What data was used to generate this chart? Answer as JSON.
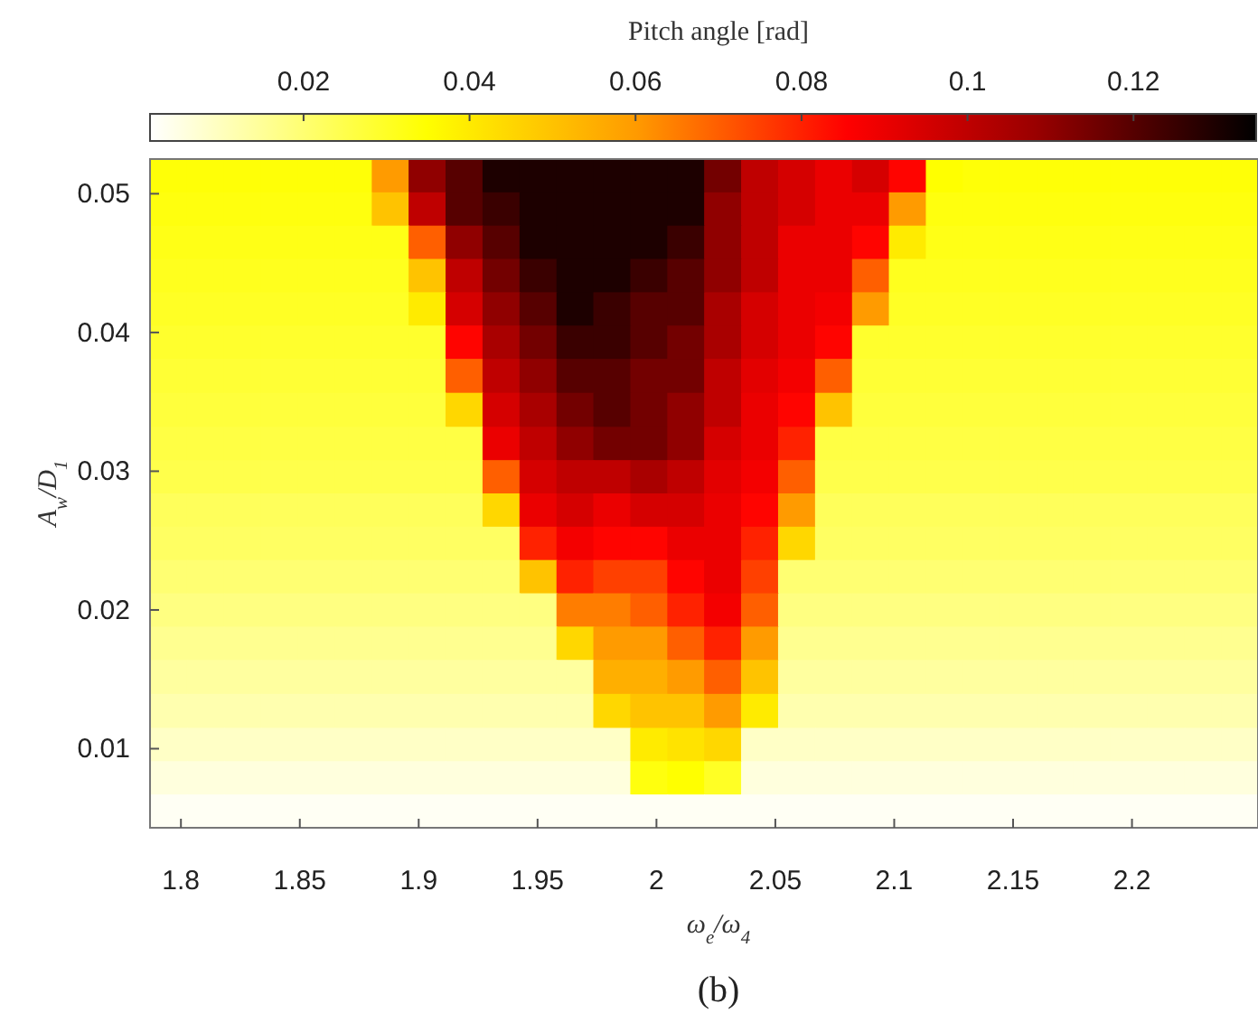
{
  "chart_data": {
    "type": "heatmap",
    "xlabel": "ω$_{e}$/ω$_{4}$",
    "ylabel": "A$_{w}$/D$_{1}$",
    "clabel": "Pitch angle [rad]",
    "annotations": [
      "(b)"
    ],
    "xlim": [
      1.787,
      2.253
    ],
    "xticks": [
      1.8,
      1.85,
      1.9,
      1.95,
      2,
      2.05,
      2.1,
      2.15,
      2.2
    ],
    "ylim": [
      0.0043,
      0.0525
    ],
    "yticks": [
      0.01,
      0.02,
      0.03,
      0.04,
      0.05
    ],
    "clim": [
      0.0015,
      0.135
    ],
    "cticks": [
      0.02,
      0.04,
      0.06,
      0.08,
      0.1,
      0.12
    ],
    "x": [
      1.7948,
      1.8103,
      1.8259,
      1.8414,
      1.8569,
      1.8725,
      1.888,
      1.9035,
      1.9191,
      1.9346,
      1.9502,
      1.9657,
      1.9812,
      1.9968,
      2.0123,
      2.0278,
      2.0434,
      2.0589,
      2.0745,
      2.09,
      2.1055,
      2.1211,
      2.1366,
      2.1521,
      2.1677,
      2.1832,
      2.1988,
      2.2143,
      2.2298,
      2.2454
    ],
    "y": [
      0.0513,
      0.0489,
      0.0465,
      0.0441,
      0.0417,
      0.0393,
      0.0369,
      0.0344,
      0.032,
      0.0296,
      0.0272,
      0.0248,
      0.0224,
      0.02,
      0.0176,
      0.0152,
      0.0127,
      0.0103,
      0.0079,
      0.0055
    ],
    "cells": [
      [
        0.034,
        0.034,
        0.034,
        0.034,
        0.034,
        0.034,
        0.06,
        0.11,
        0.12,
        0.13,
        0.13,
        0.13,
        0.13,
        0.13,
        0.13,
        0.115,
        0.1,
        0.095,
        0.09,
        0.095,
        0.085,
        0.035,
        0.034,
        0.034,
        0.034,
        0.034,
        0.034,
        0.034,
        0.034,
        0.034
      ],
      [
        0.033,
        0.033,
        0.033,
        0.033,
        0.033,
        0.033,
        0.05,
        0.1,
        0.12,
        0.125,
        0.13,
        0.13,
        0.13,
        0.13,
        0.13,
        0.11,
        0.1,
        0.095,
        0.09,
        0.09,
        0.06,
        0.033,
        0.033,
        0.033,
        0.033,
        0.033,
        0.033,
        0.033,
        0.033,
        0.033
      ],
      [
        0.032,
        0.032,
        0.032,
        0.032,
        0.032,
        0.032,
        0.032,
        0.07,
        0.11,
        0.12,
        0.13,
        0.13,
        0.13,
        0.13,
        0.125,
        0.11,
        0.1,
        0.09,
        0.09,
        0.085,
        0.04,
        0.032,
        0.032,
        0.032,
        0.032,
        0.032,
        0.032,
        0.032,
        0.032,
        0.032
      ],
      [
        0.031,
        0.031,
        0.031,
        0.031,
        0.031,
        0.031,
        0.031,
        0.05,
        0.1,
        0.115,
        0.125,
        0.13,
        0.13,
        0.125,
        0.12,
        0.11,
        0.1,
        0.09,
        0.09,
        0.07,
        0.031,
        0.031,
        0.031,
        0.031,
        0.031,
        0.031,
        0.031,
        0.031,
        0.031,
        0.031
      ],
      [
        0.03,
        0.03,
        0.03,
        0.03,
        0.03,
        0.03,
        0.03,
        0.04,
        0.095,
        0.11,
        0.12,
        0.13,
        0.125,
        0.12,
        0.12,
        0.105,
        0.095,
        0.09,
        0.088,
        0.06,
        0.03,
        0.03,
        0.03,
        0.03,
        0.03,
        0.03,
        0.03,
        0.03,
        0.03,
        0.03
      ],
      [
        0.029,
        0.029,
        0.029,
        0.029,
        0.029,
        0.029,
        0.029,
        0.029,
        0.085,
        0.105,
        0.115,
        0.125,
        0.125,
        0.12,
        0.115,
        0.105,
        0.095,
        0.09,
        0.085,
        0.029,
        0.029,
        0.029,
        0.029,
        0.029,
        0.029,
        0.029,
        0.029,
        0.029,
        0.029,
        0.029
      ],
      [
        0.028,
        0.028,
        0.028,
        0.028,
        0.028,
        0.028,
        0.028,
        0.028,
        0.07,
        0.1,
        0.11,
        0.12,
        0.12,
        0.115,
        0.115,
        0.1,
        0.092,
        0.088,
        0.07,
        0.028,
        0.028,
        0.028,
        0.028,
        0.028,
        0.028,
        0.028,
        0.028,
        0.028,
        0.028,
        0.028
      ],
      [
        0.027,
        0.027,
        0.027,
        0.027,
        0.027,
        0.027,
        0.027,
        0.027,
        0.045,
        0.095,
        0.105,
        0.115,
        0.12,
        0.115,
        0.11,
        0.1,
        0.09,
        0.085,
        0.05,
        0.027,
        0.027,
        0.027,
        0.027,
        0.027,
        0.027,
        0.027,
        0.027,
        0.027,
        0.027,
        0.027
      ],
      [
        0.026,
        0.026,
        0.026,
        0.026,
        0.026,
        0.026,
        0.026,
        0.026,
        0.026,
        0.09,
        0.1,
        0.11,
        0.115,
        0.115,
        0.11,
        0.095,
        0.09,
        0.08,
        0.026,
        0.026,
        0.026,
        0.026,
        0.026,
        0.026,
        0.026,
        0.026,
        0.026,
        0.026,
        0.026,
        0.026
      ],
      [
        0.025,
        0.025,
        0.025,
        0.025,
        0.025,
        0.025,
        0.025,
        0.025,
        0.025,
        0.07,
        0.095,
        0.1,
        0.1,
        0.105,
        0.1,
        0.092,
        0.088,
        0.07,
        0.025,
        0.025,
        0.025,
        0.025,
        0.025,
        0.025,
        0.025,
        0.025,
        0.025,
        0.025,
        0.025,
        0.025
      ],
      [
        0.023,
        0.023,
        0.023,
        0.023,
        0.023,
        0.023,
        0.023,
        0.023,
        0.023,
        0.045,
        0.09,
        0.095,
        0.09,
        0.095,
        0.095,
        0.09,
        0.085,
        0.06,
        0.023,
        0.023,
        0.023,
        0.023,
        0.023,
        0.023,
        0.023,
        0.023,
        0.023,
        0.023,
        0.023,
        0.023
      ],
      [
        0.022,
        0.022,
        0.022,
        0.022,
        0.022,
        0.022,
        0.022,
        0.022,
        0.022,
        0.022,
        0.08,
        0.088,
        0.085,
        0.085,
        0.09,
        0.09,
        0.08,
        0.045,
        0.022,
        0.022,
        0.022,
        0.022,
        0.022,
        0.022,
        0.022,
        0.022,
        0.022,
        0.022,
        0.022,
        0.022
      ],
      [
        0.02,
        0.02,
        0.02,
        0.02,
        0.02,
        0.02,
        0.02,
        0.02,
        0.02,
        0.02,
        0.05,
        0.08,
        0.075,
        0.075,
        0.085,
        0.09,
        0.075,
        0.02,
        0.02,
        0.02,
        0.02,
        0.02,
        0.02,
        0.02,
        0.02,
        0.02,
        0.02,
        0.02,
        0.02,
        0.02
      ],
      [
        0.018,
        0.018,
        0.018,
        0.018,
        0.018,
        0.018,
        0.018,
        0.018,
        0.018,
        0.018,
        0.018,
        0.065,
        0.065,
        0.07,
        0.08,
        0.088,
        0.07,
        0.018,
        0.018,
        0.018,
        0.018,
        0.018,
        0.018,
        0.018,
        0.018,
        0.018,
        0.018,
        0.018,
        0.018,
        0.018
      ],
      [
        0.016,
        0.016,
        0.016,
        0.016,
        0.016,
        0.016,
        0.016,
        0.016,
        0.016,
        0.016,
        0.016,
        0.045,
        0.06,
        0.06,
        0.07,
        0.08,
        0.06,
        0.016,
        0.016,
        0.016,
        0.016,
        0.016,
        0.016,
        0.016,
        0.016,
        0.016,
        0.016,
        0.016,
        0.016,
        0.016
      ],
      [
        0.014,
        0.014,
        0.014,
        0.014,
        0.014,
        0.014,
        0.014,
        0.014,
        0.014,
        0.014,
        0.014,
        0.014,
        0.055,
        0.055,
        0.06,
        0.07,
        0.05,
        0.014,
        0.014,
        0.014,
        0.014,
        0.014,
        0.014,
        0.014,
        0.014,
        0.014,
        0.014,
        0.014,
        0.014,
        0.014
      ],
      [
        0.012,
        0.012,
        0.012,
        0.012,
        0.012,
        0.012,
        0.012,
        0.012,
        0.012,
        0.012,
        0.012,
        0.012,
        0.045,
        0.05,
        0.05,
        0.06,
        0.04,
        0.012,
        0.012,
        0.012,
        0.012,
        0.012,
        0.012,
        0.012,
        0.012,
        0.012,
        0.012,
        0.012,
        0.012,
        0.012
      ],
      [
        0.009,
        0.009,
        0.009,
        0.009,
        0.009,
        0.009,
        0.009,
        0.009,
        0.009,
        0.009,
        0.009,
        0.009,
        0.009,
        0.04,
        0.042,
        0.045,
        0.009,
        0.009,
        0.009,
        0.009,
        0.009,
        0.009,
        0.009,
        0.009,
        0.009,
        0.009,
        0.009,
        0.009,
        0.009,
        0.009
      ],
      [
        0.006,
        0.006,
        0.006,
        0.006,
        0.006,
        0.006,
        0.006,
        0.006,
        0.006,
        0.006,
        0.006,
        0.006,
        0.006,
        0.033,
        0.035,
        0.03,
        0.006,
        0.006,
        0.006,
        0.006,
        0.006,
        0.006,
        0.006,
        0.006,
        0.006,
        0.006,
        0.006,
        0.006,
        0.006,
        0.006
      ],
      [
        0.003,
        0.003,
        0.003,
        0.003,
        0.003,
        0.003,
        0.003,
        0.003,
        0.003,
        0.003,
        0.003,
        0.003,
        0.003,
        0.003,
        0.003,
        0.003,
        0.003,
        0.003,
        0.003,
        0.003,
        0.003,
        0.003,
        0.003,
        0.003,
        0.003,
        0.003,
        0.003,
        0.003,
        0.003,
        0.003
      ]
    ]
  }
}
